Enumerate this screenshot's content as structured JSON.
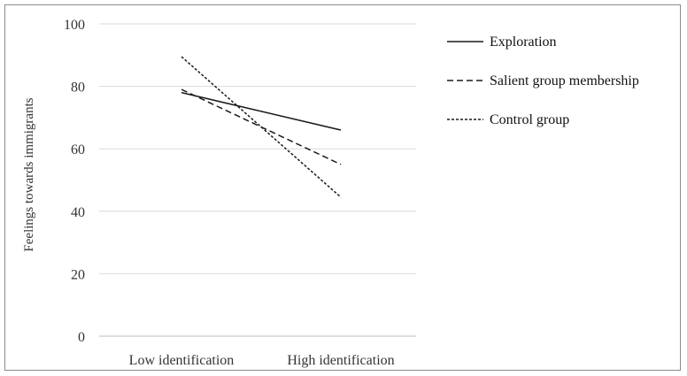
{
  "chart_data": {
    "type": "line",
    "title": "",
    "xlabel": "",
    "ylabel": "Feelings  towards immigrants",
    "categories": [
      "Low identification",
      "High identification"
    ],
    "ylim": [
      0,
      100
    ],
    "yticks": [
      0,
      20,
      40,
      60,
      80,
      100
    ],
    "grid": true,
    "legend_position": "right",
    "series": [
      {
        "name": "Exploration",
        "values": [
          78,
          66
        ],
        "dash": "solid",
        "color": "#1a1a1a"
      },
      {
        "name": "Salient group membership",
        "values": [
          79,
          55
        ],
        "dash": "dashed",
        "color": "#1a1a1a"
      },
      {
        "name": "Control group",
        "values": [
          89.5,
          44.5
        ],
        "dash": "dotted",
        "color": "#1a1a1a"
      }
    ]
  }
}
